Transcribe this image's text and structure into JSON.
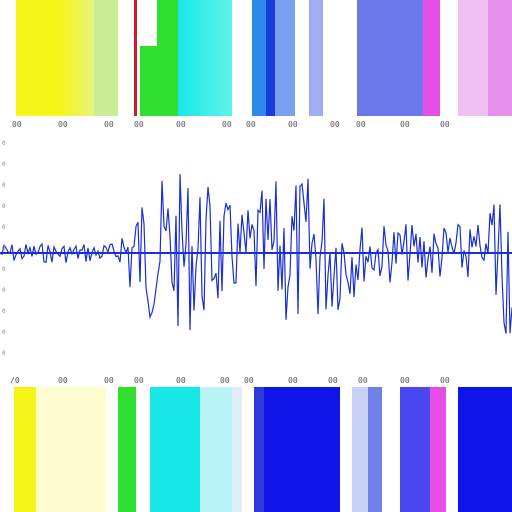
{
  "top_ruler": {
    "labels": [
      "00",
      "00",
      "00",
      "00",
      "00",
      "00",
      "00",
      "00",
      "00",
      "00",
      "00",
      "00"
    ]
  },
  "bottom_ruler": {
    "labels": [
      "/0",
      "00",
      "00",
      "00",
      "00",
      "00",
      "00",
      "00",
      "00",
      "00",
      "00",
      "00"
    ]
  },
  "waveform": {
    "color": "#1b2fd4",
    "axis_labels": [
      "0",
      "0",
      "0",
      "0",
      "0",
      "0",
      "0",
      "0",
      "0",
      "0",
      "0"
    ]
  },
  "top_strip_colors": [
    "#f5f51a",
    "#f2f870",
    "#c9ec95",
    "#ffffff",
    "#c7202a",
    "#30e030",
    "#18e8e8",
    "#ffffff",
    "#2e8ae8",
    "#1c3ce0",
    "#7aa0f0",
    "#ffffff",
    "#6b78ea",
    "#e64ee6",
    "#ffffff",
    "#e890ee"
  ],
  "bottom_strip_colors": [
    "#f5f51a",
    "#fdfdd0",
    "#ffffff",
    "#30e030",
    "#18e8e8",
    "#b8f4f4",
    "#ffffff",
    "#0f14e8",
    "#ffffff",
    "#7080e8",
    "#4848ee",
    "#e64ee6",
    "#ffffff",
    "#0f14e8"
  ]
}
